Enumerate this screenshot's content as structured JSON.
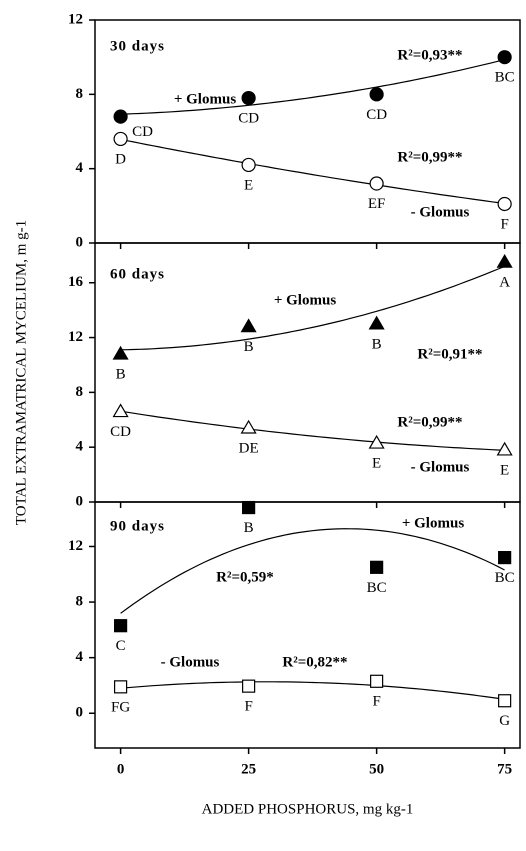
{
  "chart_data": [
    {
      "type": "scatter",
      "title": "30 days",
      "xlim": [
        -5,
        78
      ],
      "xticks": [
        0,
        25,
        50,
        75
      ],
      "ylim": [
        0,
        12
      ],
      "yticks": [
        0,
        4,
        8,
        12
      ],
      "series": [
        {
          "name": "+ Glomus",
          "marker": "circle",
          "color": "#000000",
          "filled": true,
          "x": [
            0,
            25,
            50,
            75
          ],
          "values": [
            6.8,
            7.8,
            8.0,
            10.0
          ],
          "letters": [
            "CD",
            "CD",
            "CD",
            "BC"
          ],
          "r2": "R²=0,93**"
        },
        {
          "name": "- Glomus",
          "marker": "circle",
          "color": "#000000",
          "filled": false,
          "x": [
            0,
            25,
            50,
            75
          ],
          "values": [
            5.6,
            4.2,
            3.2,
            2.1
          ],
          "letters": [
            "D",
            "E",
            "EF",
            "F"
          ],
          "r2": "R²=0,99**"
        }
      ]
    },
    {
      "type": "scatter",
      "title": "60 days",
      "xlim": [
        -5,
        78
      ],
      "xticks": [
        0,
        25,
        50,
        75
      ],
      "ylim": [
        0,
        18.9
      ],
      "yticks": [
        0,
        4,
        8,
        12,
        16
      ],
      "y_label": "TOTAL EXTRAMATRICAL MYCELIUM, m g-1",
      "series": [
        {
          "name": "+ Glomus",
          "marker": "triangle",
          "color": "#000000",
          "filled": true,
          "x": [
            0,
            25,
            50,
            75
          ],
          "values": [
            10.8,
            12.8,
            13.0,
            17.5
          ],
          "letters": [
            "B",
            "B",
            "B",
            "A"
          ],
          "r2": "R²=0,91**"
        },
        {
          "name": "- Glomus",
          "marker": "triangle",
          "color": "#000000",
          "filled": false,
          "x": [
            0,
            25,
            50,
            75
          ],
          "values": [
            6.6,
            5.4,
            4.3,
            3.8
          ],
          "letters": [
            "CD",
            "DE",
            "E",
            "E"
          ],
          "r2": "R²=0,99**"
        }
      ]
    },
    {
      "type": "scatter",
      "title": "90 days",
      "xlim": [
        -5,
        78
      ],
      "xticks": [
        0,
        25,
        50,
        75
      ],
      "ylim": [
        -2.5,
        15.2
      ],
      "yticks": [
        0,
        4,
        8,
        12
      ],
      "x_label": "ADDED PHOSPHORUS, mg kg-1",
      "series": [
        {
          "name": "+ Glomus",
          "marker": "square",
          "color": "#000000",
          "filled": true,
          "x": [
            0,
            25,
            50,
            75
          ],
          "values": [
            6.3,
            14.8,
            10.5,
            11.2
          ],
          "letters": [
            "C",
            "B",
            "BC",
            "BC"
          ],
          "r2": "R²=0,59*"
        },
        {
          "name": "- Glomus",
          "marker": "square",
          "color": "#000000",
          "filled": false,
          "x": [
            0,
            25,
            50,
            75
          ],
          "values": [
            1.9,
            1.95,
            2.3,
            0.9
          ],
          "letters": [
            "FG",
            "F",
            "F",
            "G"
          ],
          "r2": "R²=0,82**"
        }
      ]
    }
  ]
}
